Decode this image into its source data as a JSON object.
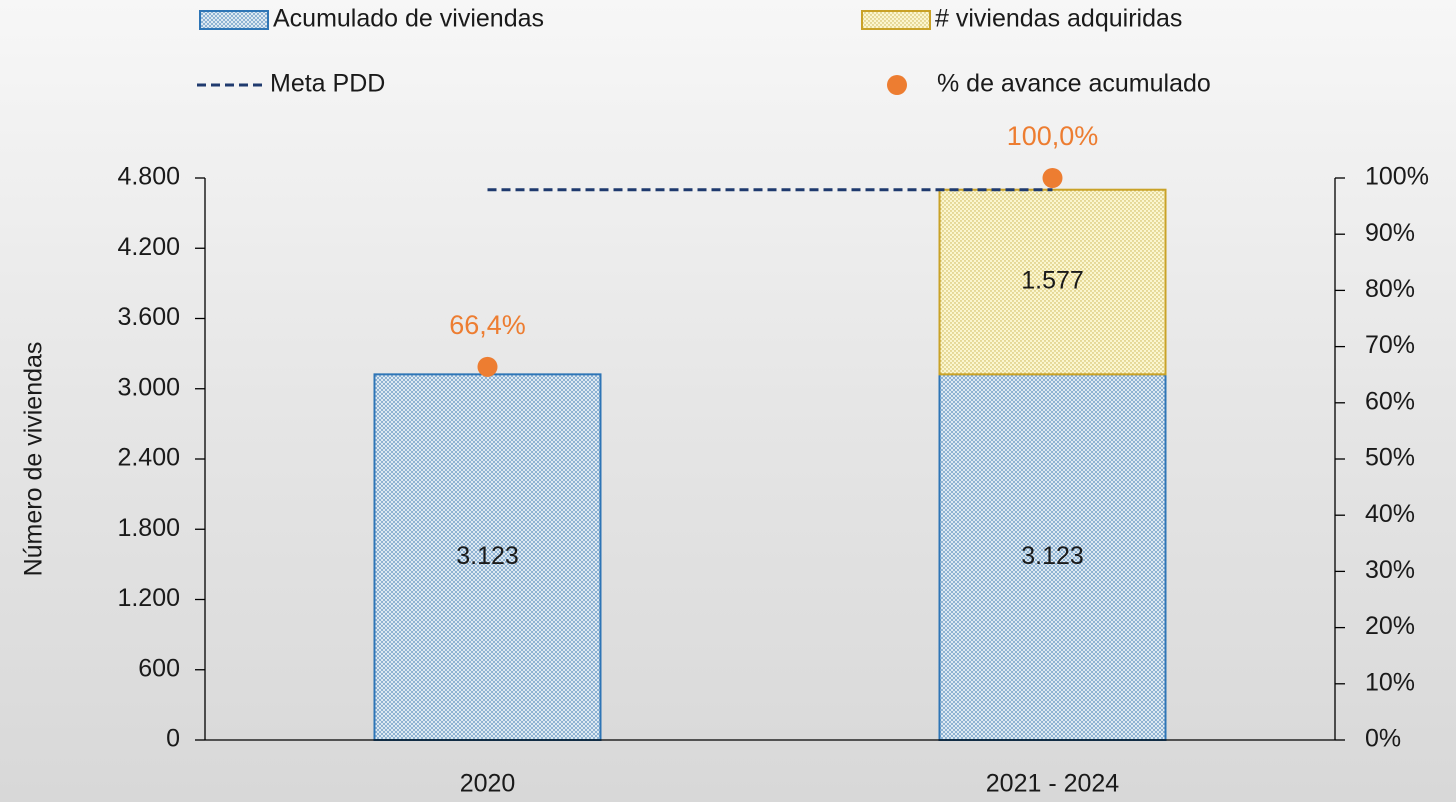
{
  "chart_data": {
    "type": "bar",
    "stacked": true,
    "categories": [
      "2020",
      "2021 - 2024"
    ],
    "series": [
      {
        "name": "Acumulado de viviendas",
        "type": "bar",
        "color": "#2e75b6",
        "values": [
          3123,
          3123
        ],
        "value_labels": [
          "3.123",
          "3.123"
        ]
      },
      {
        "name": "# viviendas adquiridas",
        "type": "bar",
        "color": "#c9a227",
        "values": [
          null,
          1577
        ],
        "value_labels": [
          null,
          "1.577"
        ]
      },
      {
        "name": "Meta PDD",
        "type": "line",
        "color": "#1f3a6e",
        "values": [
          4700,
          4700
        ]
      },
      {
        "name": "% de avance acumulado",
        "type": "scatter",
        "axis": "y2",
        "color": "#ed7d31",
        "values": [
          66.4,
          100.0
        ],
        "value_labels": [
          "66,4%",
          "100,0%"
        ]
      }
    ],
    "y_label": "Número de viviendas",
    "ylim": [
      0,
      4800
    ],
    "yticks": [
      0,
      600,
      {
        "value": 1200,
        "label": "1.200"
      },
      {
        "value": 1800,
        "label": "1.800"
      },
      {
        "value": 2400,
        "label": "2.400"
      },
      {
        "value": 3000,
        "label": "3.000"
      },
      {
        "value": 3600,
        "label": "3.600"
      },
      {
        "value": 4200,
        "label": "4.200"
      },
      {
        "value": 4800,
        "label": "4.800"
      }
    ],
    "y2lim": [
      0,
      100
    ],
    "y2ticks": [
      {
        "value": 0,
        "label": "0%"
      },
      {
        "value": 10,
        "label": "10%"
      },
      {
        "value": 20,
        "label": "20%"
      },
      {
        "value": 30,
        "label": "30%"
      },
      {
        "value": 40,
        "label": "40%"
      },
      {
        "value": 50,
        "label": "50%"
      },
      {
        "value": 60,
        "label": "60%"
      },
      {
        "value": 70,
        "label": "70%"
      },
      {
        "value": 80,
        "label": "80%"
      },
      {
        "value": 90,
        "label": "90%"
      },
      {
        "value": 100,
        "label": "100%"
      }
    ]
  }
}
